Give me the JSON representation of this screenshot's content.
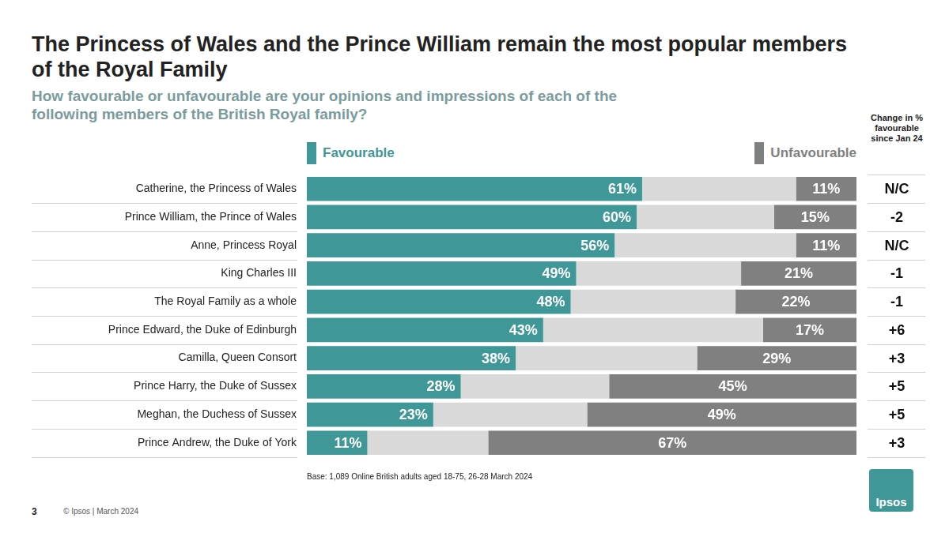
{
  "chart_data": {
    "type": "bar",
    "orientation": "horizontal",
    "stacked": true,
    "title": "The Princess of Wales and the Prince William remain the most popular members of the Royal Family",
    "subtitle": "How favourable or unfavourable are your opinions and impressions of each of the following members of the British Royal family?",
    "categories": [
      "Catherine, the Princess of Wales",
      "Prince William, the Prince of Wales",
      "Anne, Princess Royal",
      "King Charles III",
      "The Royal Family as a whole",
      "Prince Edward, the Duke of Edinburgh",
      "Camilla, Queen Consort",
      "Prince Harry, the Duke of Sussex",
      "Meghan, the Duchess of Sussex",
      "Prince Andrew, the Duke of York"
    ],
    "series": [
      {
        "name": "Favourable",
        "color": "#3f9897",
        "values": [
          61,
          60,
          56,
          49,
          48,
          43,
          38,
          28,
          23,
          11
        ],
        "value_labels": [
          "61%",
          "60%",
          "56%",
          "49%",
          "48%",
          "43%",
          "38%",
          "28%",
          "23%",
          "11%"
        ]
      },
      {
        "name": null,
        "color": "#d9d9d9",
        "values": [
          28,
          25,
          33,
          30,
          30,
          40,
          33,
          27,
          28,
          22
        ]
      },
      {
        "name": "Unfavourable",
        "color": "#808080",
        "values": [
          11,
          15,
          11,
          21,
          22,
          17,
          29,
          45,
          49,
          67
        ],
        "value_labels": [
          "11%",
          "15%",
          "11%",
          "21%",
          "22%",
          "17%",
          "29%",
          "45%",
          "49%",
          "67%"
        ]
      }
    ],
    "xlim": [
      0,
      100
    ],
    "tick_labels": "y",
    "grid": false,
    "legend": "top",
    "data_labels": true,
    "change_header": "Change in % favourable since Jan 24",
    "change_labels": [
      "N/C",
      "-2",
      "N/C",
      "-1",
      "-1",
      "+6",
      "+3",
      "+5",
      "+5",
      "+3"
    ],
    "base_note": "Base: 1,089 Online British adults aged 18-75, 26-28 March 2024",
    "page_number": "3",
    "copyright": "© Ipsos | March 2024",
    "logo": "Ipsos"
  }
}
